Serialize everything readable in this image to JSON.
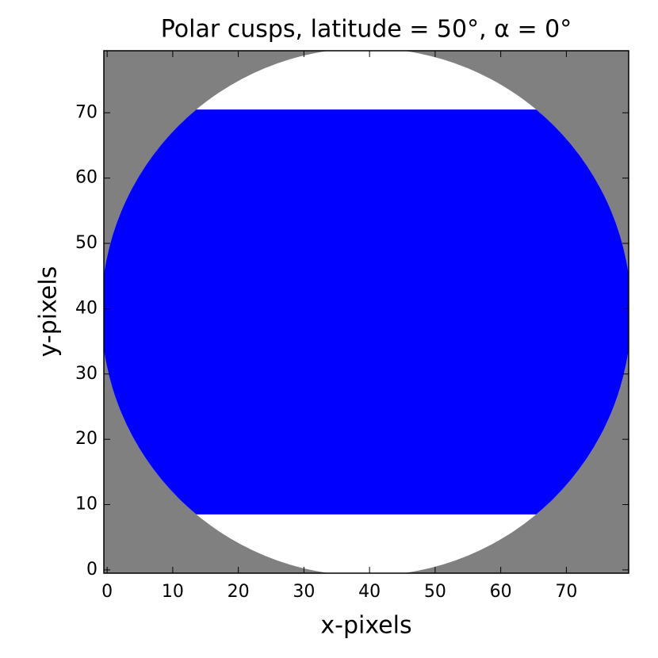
{
  "chart_data": {
    "type": "image",
    "title": "Polar cusps, latitude = 50°, α = 0°",
    "x_label": "x-pixels",
    "y_label": "y-pixels",
    "xlim": [
      -0.5,
      79.5
    ],
    "ylim": [
      -0.5,
      79.5
    ],
    "xticks": [
      0,
      10,
      20,
      30,
      40,
      50,
      60,
      70
    ],
    "yticks": [
      0,
      10,
      20,
      30,
      40,
      50,
      60,
      70
    ],
    "background": "#808080",
    "disk": {
      "cx": 39.5,
      "cy": 39.5,
      "r": 40.4,
      "color": "#ffffff"
    },
    "band": {
      "y0": 8.5,
      "y1": 70.5,
      "color": "#0000ff"
    }
  }
}
